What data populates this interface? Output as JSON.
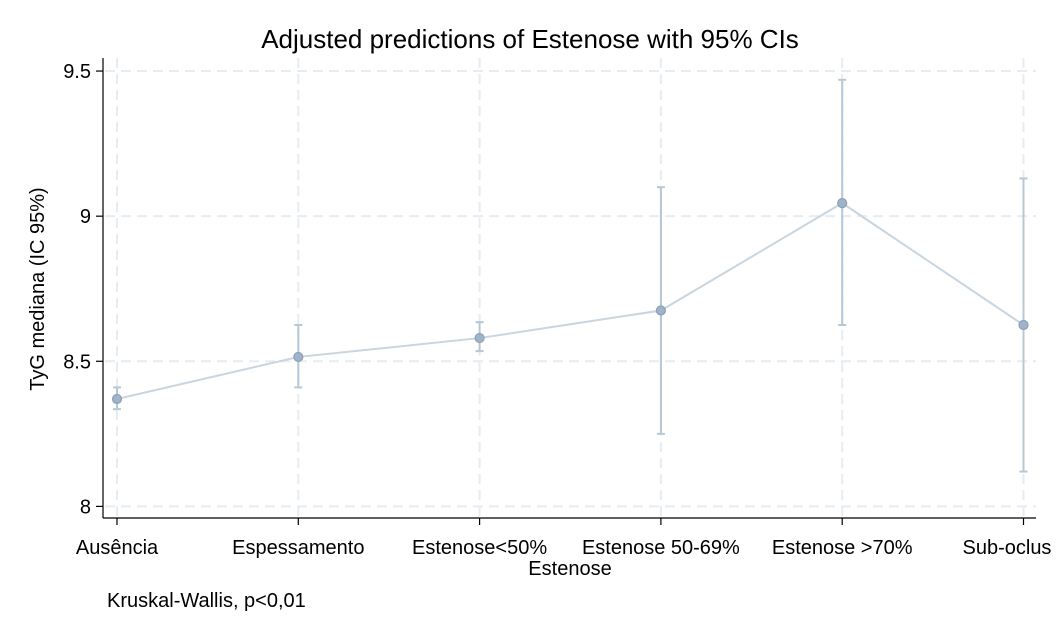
{
  "chart_data": {
    "type": "line",
    "title": "Adjusted predictions of Estenose with 95% CIs",
    "xlabel": "Estenose",
    "ylabel": "TyG mediana (IC 95%)",
    "note": "Kruskal-Wallis, p<0,01",
    "categories": [
      "Ausência",
      "Espessamento",
      "Estenose<50%",
      "Estenose 50-69%",
      "Estenose >70%",
      "Sub-oclusão"
    ],
    "category_labels": [
      "Ausência",
      "Espessamento",
      "Estenose<50%",
      "Estenose 50-69%",
      "Estenose >70%",
      "Sub-oclus"
    ],
    "values": [
      8.37,
      8.515,
      8.58,
      8.675,
      9.045,
      8.625
    ],
    "ci_lower": [
      8.335,
      8.41,
      8.535,
      8.25,
      8.625,
      8.12
    ],
    "ci_upper": [
      8.41,
      8.625,
      8.635,
      9.1,
      9.47,
      9.13
    ],
    "yticks": [
      8,
      8.5,
      9,
      9.5
    ],
    "ytick_labels": [
      "8",
      "8.5",
      "9",
      "9.5"
    ],
    "ylim": [
      7.96,
      9.545
    ],
    "grid": true,
    "colors": {
      "series": "#9fb4c8",
      "line": "#c9d5df",
      "errorbar": "#b8c7d4",
      "grid": "#e6ecf1",
      "axis": "#000000",
      "text": "#000000"
    }
  }
}
